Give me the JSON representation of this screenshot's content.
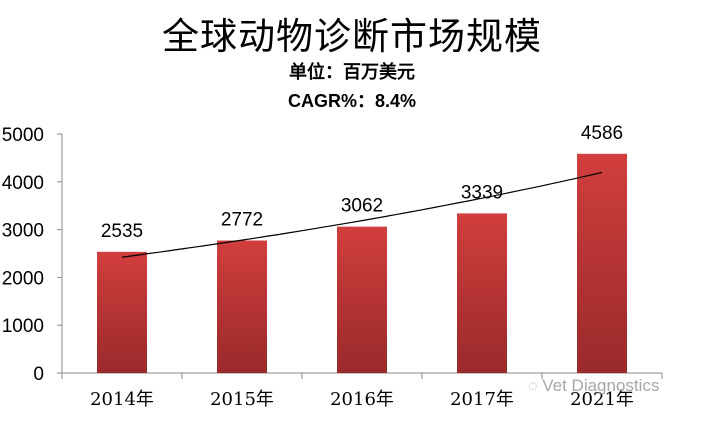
{
  "chart_data": {
    "type": "bar",
    "title": "全球动物诊断市场规模",
    "subtitle": "单位：百万美元",
    "annotation": "CAGR%：8.4%",
    "categories": [
      "2014年",
      "2015年",
      "2016年",
      "2017年",
      "2021年"
    ],
    "values": [
      2535,
      2772,
      3062,
      3339,
      4586
    ],
    "xlabel": "",
    "ylabel": "",
    "ylim": [
      0,
      5000
    ],
    "yticks": [
      0,
      1000,
      2000,
      3000,
      4000,
      5000
    ],
    "grid": false,
    "legend": "none",
    "data_labels": true,
    "trendline": "exponential",
    "bar_color": "#c0393a"
  },
  "header": {
    "title": "全球动物诊断市场规模",
    "unit": "单位：百万美元",
    "cagr": "CAGR%：8.4%"
  },
  "watermark": "Vet Diagnostics"
}
